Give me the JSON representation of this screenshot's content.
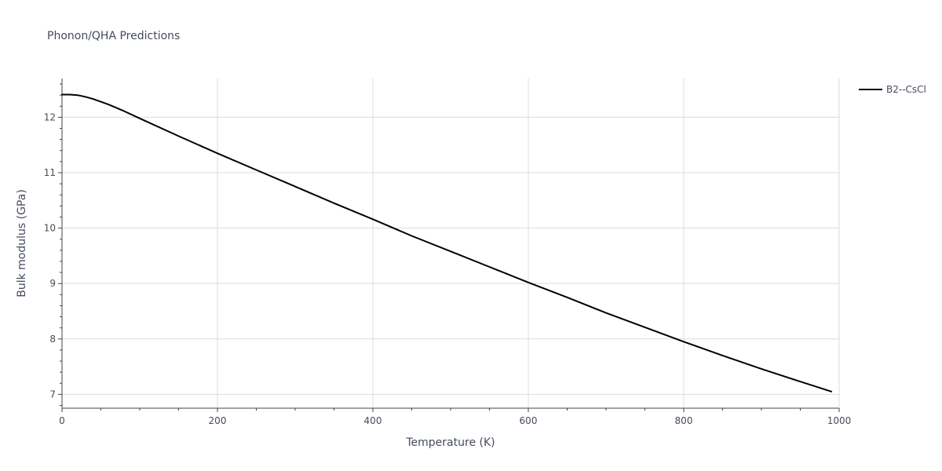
{
  "chart_data": {
    "type": "line",
    "title": "Phonon/QHA Predictions",
    "xlabel": "Temperature (K)",
    "ylabel": "Bulk modulus (GPa)",
    "xlim": [
      0,
      1000
    ],
    "ylim": [
      6.75,
      12.7
    ],
    "xticks": [
      0,
      200,
      400,
      600,
      800,
      1000
    ],
    "yticks": [
      7,
      8,
      9,
      10,
      11,
      12
    ],
    "x_tick_labels": [
      "0",
      "200",
      "400",
      "600",
      "800",
      "1000"
    ],
    "y_tick_labels": [
      "7",
      "8",
      "9",
      "10",
      "11",
      "12"
    ],
    "grid": true,
    "legend_position": "top-right",
    "series": [
      {
        "name": "B2--CsCl",
        "color": "#000000",
        "x": [
          0,
          10,
          20,
          30,
          40,
          50,
          60,
          80,
          100,
          150,
          200,
          250,
          300,
          350,
          400,
          450,
          500,
          550,
          600,
          650,
          700,
          750,
          800,
          850,
          900,
          950,
          990
        ],
        "y": [
          12.41,
          12.41,
          12.4,
          12.37,
          12.33,
          12.28,
          12.23,
          12.11,
          11.98,
          11.66,
          11.35,
          11.05,
          10.75,
          10.45,
          10.16,
          9.86,
          9.58,
          9.3,
          9.02,
          8.75,
          8.47,
          8.21,
          7.95,
          7.7,
          7.46,
          7.23,
          7.05
        ]
      }
    ]
  }
}
